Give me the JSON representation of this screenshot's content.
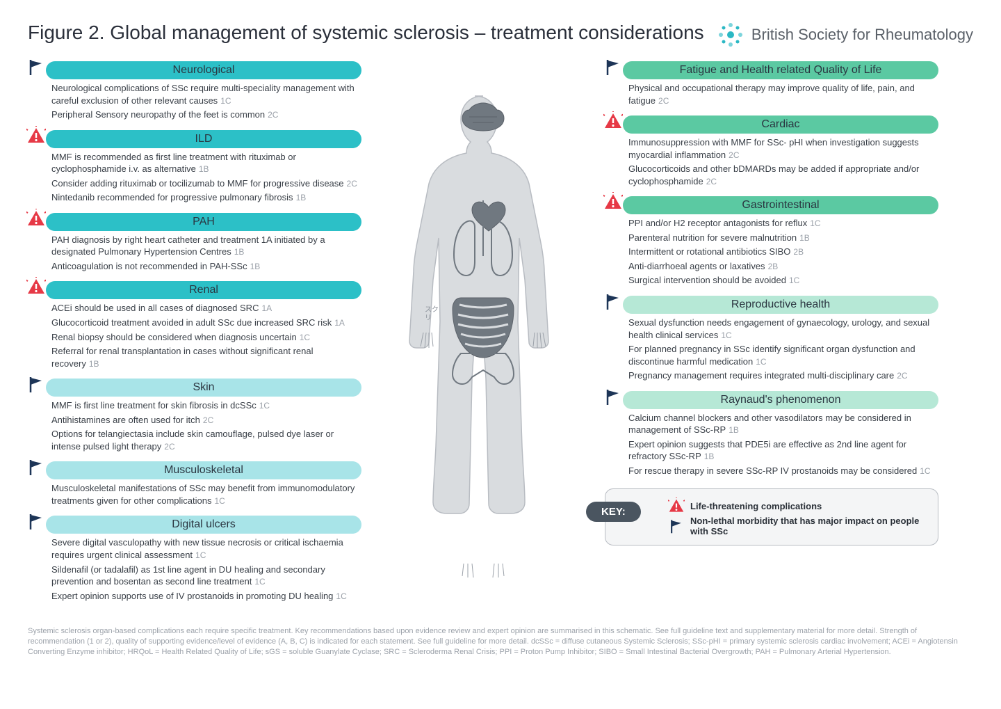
{
  "title": "Figure 2. Global management of systemic sclerosis – treatment considerations",
  "logo_text": "British Society for Rheumatology",
  "colors": {
    "left_dark": "#2cc0c7",
    "left_light": "#a8e4e8",
    "right_dark": "#5bc9a2",
    "right_light": "#b6e8d6",
    "flag": "#1d3557",
    "warn": "#e63946",
    "text": "#3a4048",
    "evidence": "#9aa0a8",
    "body_fill": "#d9dcdf",
    "body_stroke": "#b8bcc2",
    "organ": "#707880"
  },
  "left": [
    {
      "title": "Neurological",
      "icon": "flag",
      "shade": "dark",
      "items": [
        {
          "t": "Neurological complications of SSc require multi-speciality management with careful exclusion of other relevant causes",
          "e": "1C"
        },
        {
          "t": "Peripheral Sensory neuropathy of the feet is common",
          "e": "2C"
        }
      ]
    },
    {
      "title": "ILD",
      "icon": "warn",
      "shade": "dark",
      "items": [
        {
          "t": "MMF is recommended as first line treatment with rituximab or cyclophosphamide i.v. as alternative",
          "e": "1B"
        },
        {
          "t": "Consider adding rituximab or tocilizumab to MMF for progressive disease",
          "e": "2C"
        },
        {
          "t": "Nintedanib recommended for progressive pulmonary fibrosis",
          "e": "1B"
        }
      ]
    },
    {
      "title": "PAH",
      "icon": "warn",
      "shade": "dark",
      "items": [
        {
          "t": "PAH diagnosis by right heart catheter and treatment 1A initiated by a designated Pulmonary Hypertension Centres",
          "e": "1B"
        },
        {
          "t": "Anticoagulation is not recommended in PAH-SSc",
          "e": "1B"
        }
      ]
    },
    {
      "title": "Renal",
      "icon": "warn",
      "shade": "dark",
      "items": [
        {
          "t": "ACEi should be used in all cases of diagnosed SRC",
          "e": "1A"
        },
        {
          "t": "Glucocorticoid treatment avoided in adult SSc due increased SRC risk",
          "e": "1A"
        },
        {
          "t": "Renal biopsy should be considered when diagnosis uncertain",
          "e": "1C"
        },
        {
          "t": "Referral for renal transplantation in cases without significant renal recovery",
          "e": "1B"
        }
      ]
    },
    {
      "title": "Skin",
      "icon": "flag",
      "shade": "light",
      "items": [
        {
          "t": "MMF is first line treatment for skin fibrosis in dcSSc",
          "e": "1C"
        },
        {
          "t": "Antihistamines are often used for itch",
          "e": "2C"
        },
        {
          "t": "Options for telangiectasia include skin camouflage, pulsed dye laser or intense pulsed light therapy",
          "e": "2C"
        }
      ]
    },
    {
      "title": "Musculoskeletal",
      "icon": "flag",
      "shade": "light",
      "items": [
        {
          "t": "Musculoskeletal manifestations of SSc may benefit from immunomodulatory treatments given for other complications",
          "e": "1C"
        }
      ]
    },
    {
      "title": "Digital ulcers",
      "icon": "flag",
      "shade": "light",
      "items": [
        {
          "t": "Severe digital vasculopathy with new tissue necrosis or critical ischaemia requires urgent clinical assessment",
          "e": "1C"
        },
        {
          "t": "Sildenafil (or tadalafil) as 1st line agent in DU healing and secondary prevention and bosentan as second line treatment",
          "e": "1C"
        },
        {
          "t": "Expert opinion supports use of IV prostanoids in promoting DU healing",
          "e": "1C"
        }
      ]
    }
  ],
  "right": [
    {
      "title": "Fatigue and Health related Quality of Life",
      "icon": "flag",
      "shade": "dark",
      "items": [
        {
          "t": "Physical and occupational therapy may improve quality of life, pain, and fatigue",
          "e": "2C"
        }
      ]
    },
    {
      "title": "Cardiac",
      "icon": "warn",
      "shade": "dark",
      "items": [
        {
          "t": "Immunosuppression with MMF for SSc- pHI when investigation suggests myocardial inflammation",
          "e": "2C"
        },
        {
          "t": "Glucocorticoids and other bDMARDs may be added if appropriate and/or cyclophosphamide",
          "e": "2C"
        }
      ]
    },
    {
      "title": "Gastrointestinal",
      "icon": "warn",
      "shade": "dark",
      "items": [
        {
          "t": "PPI and/or H2 receptor antagonists for reflux",
          "e": "1C"
        },
        {
          "t": "Parenteral nutrition for severe malnutrition",
          "e": "1B"
        },
        {
          "t": "Intermittent or rotational antibiotics SIBO",
          "e": "2B"
        },
        {
          "t": "Anti-diarrhoeal agents or laxatives",
          "e": "2B"
        },
        {
          "t": "Surgical intervention should be avoided",
          "e": "1C"
        }
      ]
    },
    {
      "title": "Reproductive health",
      "icon": "flag",
      "shade": "light",
      "items": [
        {
          "t": "Sexual dysfunction needs engagement of gynaecology, urology, and sexual health clinical services",
          "e": "1C"
        },
        {
          "t": "For planned pregnancy in SSc identify significant organ dysfunction and discontinue harmful medication",
          "e": "1C"
        },
        {
          "t": "Pregnancy management requires integrated multi-disciplinary care",
          "e": "2C"
        }
      ]
    },
    {
      "title": "Raynaud's phenomenon",
      "icon": "flag",
      "shade": "light",
      "items": [
        {
          "t": "Calcium channel blockers and other vasodilators may be considered in management of SSc-RP",
          "e": "1B"
        },
        {
          "t": "Expert opinion suggests that PDE5i are effective as 2nd line agent for refractory SSc-RP",
          "e": "1B"
        },
        {
          "t": "For rescue therapy in severe SSc-RP IV prostanoids may be considered",
          "e": "1C"
        }
      ]
    }
  ],
  "key": {
    "label": "KEY:",
    "warn_text": "Life-threatening complications",
    "flag_text": "Non-lethal morbidity that has major impact on people with SSc"
  },
  "footnote": "Systemic sclerosis organ-based complications each require specific treatment. Key recommendations based upon evidence review and expert opinion are summarised in this schematic. See full guideline text and supplementary material for more detail. Strength of recommendation (1 or 2), quality of supporting evidence/level of evidence (A, B, C) is indicated for each statement. See full guideline for more detail. dcSSc = diffuse cutaneous Systemic Sclerosis; SSc-pHI = primary systemic sclerosis cardiac involvement; ACEi = Angiotensin Converting Enzyme inhibitor; HRQoL = Health Related Quality of Life; sGS = soluble Guanylate Cyclase; SRC = Scleroderma Renal Crisis; PPI = Proton Pump Inhibitor; SIBO = Small Intestinal Bacterial Overgrowth; PAH = Pulmonary Arterial Hypertension."
}
